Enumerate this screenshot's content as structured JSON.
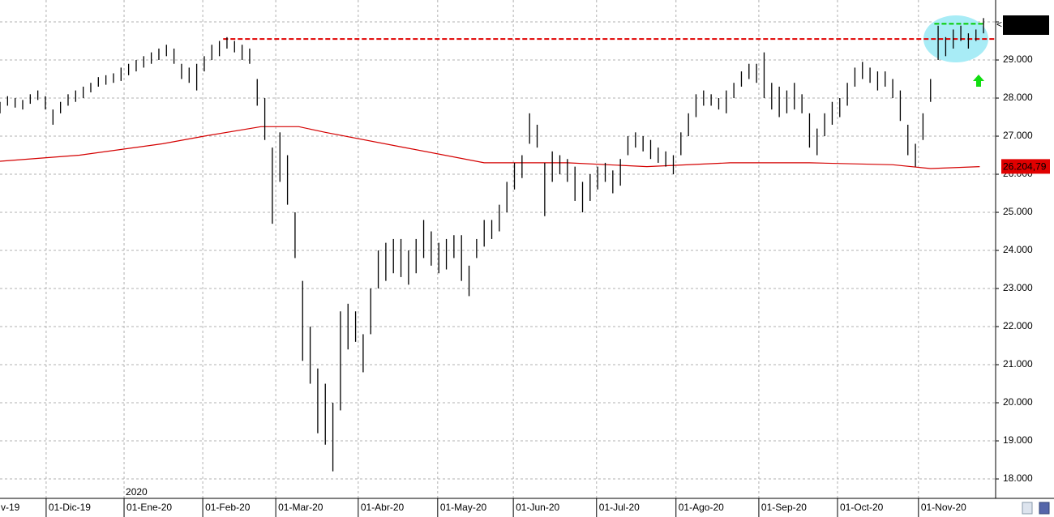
{
  "chart_data": {
    "type": "hilo",
    "year_label": "2020",
    "xlim": [
      0,
      263.2
    ],
    "ylim": [
      17490,
      30575
    ],
    "grid": true,
    "xticks": [
      {
        "value": -7.8,
        "label": "v-19"
      },
      {
        "value": 12.2,
        "label": "01-Dic-19"
      },
      {
        "value": 32.8,
        "label": "01-Ene-20"
      },
      {
        "value": 53.6,
        "label": "01-Feb-20"
      },
      {
        "value": 72.9,
        "label": "01-Mar-20"
      },
      {
        "value": 94.7,
        "label": "01-Abr-20"
      },
      {
        "value": 115.7,
        "label": "01-May-20"
      },
      {
        "value": 135.7,
        "label": "01-Jun-20"
      },
      {
        "value": 157.7,
        "label": "01-Jul-20"
      },
      {
        "value": 178.7,
        "label": "01-Ago-20"
      },
      {
        "value": 200.6,
        "label": "01-Sep-20"
      },
      {
        "value": 221.4,
        "label": "01-Oct-20"
      },
      {
        "value": 242.8,
        "label": "01-Nov-20"
      }
    ],
    "yticks": [
      {
        "value": 18000,
        "label": "18.000"
      },
      {
        "value": 19000,
        "label": "19.000"
      },
      {
        "value": 20000,
        "label": "20.000"
      },
      {
        "value": 21000,
        "label": "21.000"
      },
      {
        "value": 22000,
        "label": "22.000"
      },
      {
        "value": 23000,
        "label": "23.000"
      },
      {
        "value": 24000,
        "label": "24.000"
      },
      {
        "value": 25000,
        "label": "25.000"
      },
      {
        "value": 26000,
        "label": "26.000"
      },
      {
        "value": 27000,
        "label": "27.000"
      },
      {
        "value": 28000,
        "label": "28.000"
      },
      {
        "value": 29000,
        "label": "29.000"
      },
      {
        "value": 30000,
        "label": "30.000"
      }
    ],
    "bars": {
      "color": "#000000",
      "x": [
        0,
        2,
        4,
        6,
        8,
        10,
        12,
        14,
        16,
        18,
        20,
        22,
        24,
        26,
        28,
        30,
        32,
        34,
        36,
        38,
        40,
        42,
        44,
        46,
        48,
        50,
        52,
        54,
        56,
        58,
        60,
        62,
        64,
        66,
        68,
        70,
        72,
        74,
        76,
        78,
        80,
        82,
        84,
        86,
        88,
        90,
        92,
        94,
        96,
        98,
        100,
        102,
        104,
        106,
        108,
        110,
        112,
        114,
        116,
        118,
        120,
        122,
        124,
        126,
        128,
        130,
        132,
        134,
        136,
        138,
        140,
        142,
        144,
        146,
        148,
        150,
        152,
        154,
        156,
        158,
        160,
        162,
        164,
        166,
        168,
        170,
        172,
        174,
        176,
        178,
        180,
        182,
        184,
        186,
        188,
        190,
        192,
        194,
        196,
        198,
        200,
        202,
        204,
        206,
        208,
        210,
        212,
        214,
        216,
        218,
        220,
        222,
        224,
        226,
        228,
        230,
        232,
        234,
        236,
        238,
        240,
        242,
        244,
        246,
        248,
        250,
        252,
        254,
        256,
        258,
        260
      ],
      "low": [
        27600,
        27800,
        27750,
        27700,
        27850,
        27950,
        27700,
        27300,
        27600,
        27800,
        27900,
        28000,
        28150,
        28300,
        28350,
        28400,
        28450,
        28600,
        28700,
        28800,
        28900,
        29000,
        29100,
        28900,
        28500,
        28400,
        28200,
        28700,
        29000,
        29100,
        29300,
        29200,
        29000,
        28900,
        27800,
        26900,
        24700,
        25800,
        25200,
        23800,
        21100,
        20500,
        19200,
        18900,
        18200,
        19800,
        21400,
        21600,
        20800,
        21800,
        23000,
        23200,
        23400,
        23300,
        23100,
        23400,
        23800,
        23600,
        23400,
        23500,
        23800,
        23200,
        22800,
        23800,
        24100,
        24300,
        24500,
        25000,
        25600,
        25900,
        26800,
        26700,
        24900,
        25800,
        26000,
        25800,
        25300,
        25000,
        25300,
        25600,
        25800,
        25500,
        25700,
        26500,
        26700,
        26600,
        26400,
        26300,
        26200,
        26000,
        26500,
        27000,
        27500,
        27800,
        27800,
        27700,
        27600,
        28000,
        28300,
        28500,
        28400,
        28000,
        27700,
        27500,
        27600,
        27700,
        27600,
        26700,
        26500,
        27000,
        27300,
        27500,
        27800,
        28300,
        28500,
        28400,
        28200,
        28300,
        28000,
        27400,
        26500,
        26200,
        26900,
        27900,
        29000,
        29100,
        29300,
        29500,
        29300,
        29500,
        29700
      ],
      "high": [
        27900,
        28050,
        28000,
        27950,
        28100,
        28200,
        28050,
        27700,
        27900,
        28100,
        28200,
        28300,
        28400,
        28550,
        28600,
        28650,
        28800,
        28900,
        29000,
        29100,
        29200,
        29300,
        29400,
        29300,
        28900,
        28800,
        28900,
        29100,
        29400,
        29500,
        29600,
        29500,
        29400,
        29300,
        28500,
        28000,
        26700,
        27100,
        26500,
        25000,
        23200,
        22000,
        20900,
        20500,
        20000,
        22400,
        22600,
        22400,
        21800,
        23000,
        24000,
        24200,
        24300,
        24300,
        24000,
        24300,
        24800,
        24500,
        24200,
        24300,
        24400,
        24400,
        23600,
        24300,
        24800,
        24800,
        25200,
        25800,
        26300,
        26500,
        27600,
        27300,
        26300,
        26600,
        26500,
        26400,
        26200,
        25800,
        26000,
        26200,
        26300,
        26100,
        26400,
        27000,
        27100,
        27000,
        26900,
        26700,
        26600,
        26500,
        27100,
        27600,
        28100,
        28200,
        28100,
        28000,
        28200,
        28400,
        28700,
        28900,
        28900,
        29200,
        28400,
        28300,
        28200,
        28400,
        28100,
        27600,
        27200,
        27600,
        27900,
        28000,
        28400,
        28800,
        28950,
        28800,
        28700,
        28700,
        28500,
        28200,
        27300,
        26800,
        27600,
        28500,
        29900,
        29600,
        29800,
        29900,
        29700,
        29800,
        30100
      ]
    },
    "moving_average": {
      "color": "#d40000",
      "x": [
        0,
        21,
        43,
        54,
        69,
        79,
        86,
        107,
        128,
        150,
        171,
        193,
        214,
        236,
        246,
        259
      ],
      "values": [
        26340,
        26500,
        26800,
        27000,
        27250,
        27250,
        27100,
        26700,
        26300,
        26300,
        26200,
        26300,
        26300,
        26250,
        26150,
        26200
      ],
      "marker": {
        "value": 26204.79,
        "label": "26.204,79"
      }
    },
    "levels": [
      {
        "value": 29550,
        "x": [
          59,
          263
        ],
        "color": "#e00000"
      },
      {
        "value": 29950,
        "x": [
          247,
          260
        ],
        "color": "#00cc00"
      }
    ]
  }
}
